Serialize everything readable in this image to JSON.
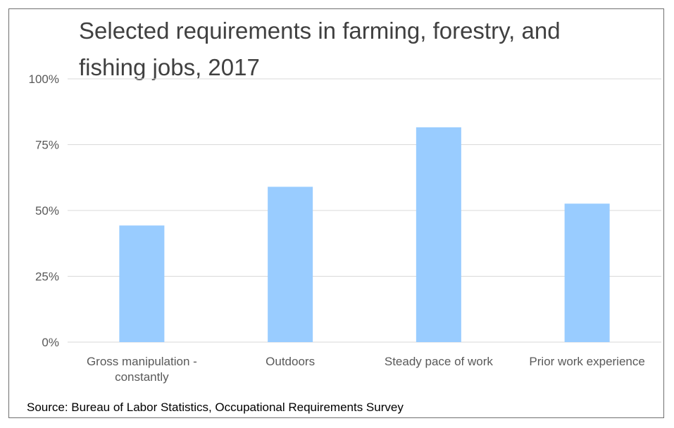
{
  "chart_data": {
    "type": "bar",
    "title_lines": [
      "Selected requirements in farming, forestry, and",
      "fishing jobs, 2017"
    ],
    "categories": [
      [
        "Gross manipulation -",
        "constantly"
      ],
      [
        "Outdoors"
      ],
      [
        "Steady pace of work"
      ],
      [
        "Prior work experience"
      ]
    ],
    "values": [
      44.3,
      59.0,
      81.6,
      52.6
    ],
    "ylim": [
      0,
      100
    ],
    "yticks": [
      0,
      25,
      50,
      75,
      100
    ],
    "ytick_labels": [
      "0%",
      "25%",
      "50%",
      "75%",
      "100%"
    ],
    "grid": true,
    "bar_color": "#99ccff",
    "grid_color": "#d9d9d9",
    "source": "Source: Bureau of Labor Statistics, Occupational Requirements Survey"
  }
}
